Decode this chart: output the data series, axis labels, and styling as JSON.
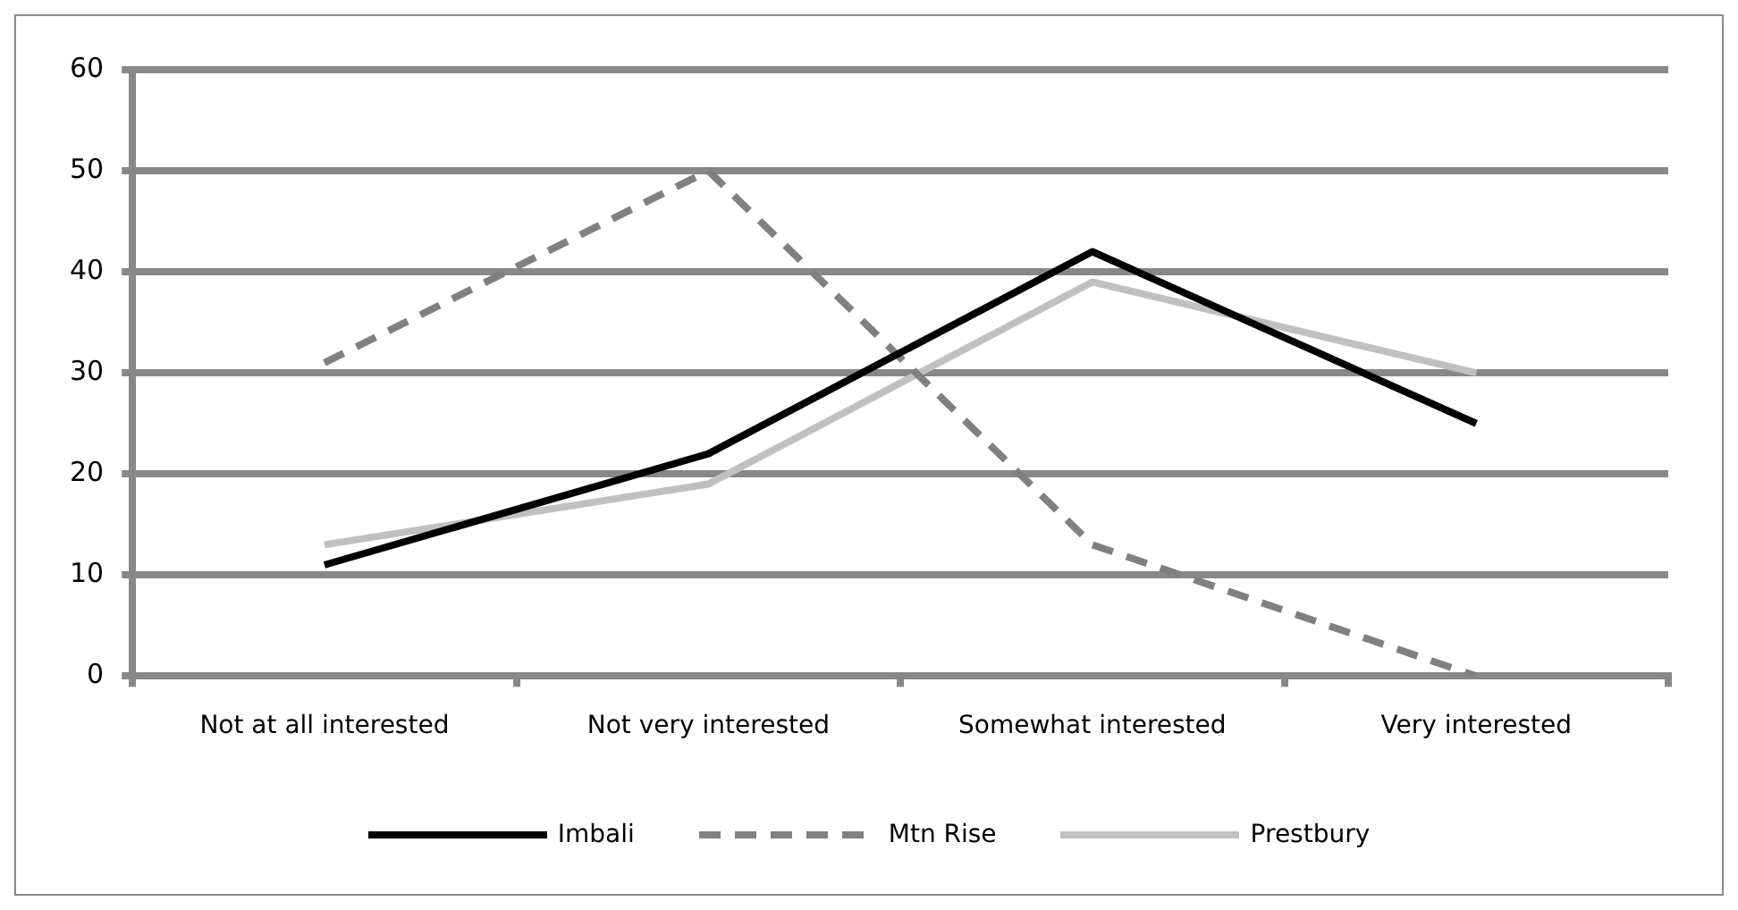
{
  "chart_data": {
    "type": "line",
    "categories": [
      "Not at all interested",
      "Not very interested",
      "Somewhat interested",
      "Very interested"
    ],
    "series": [
      {
        "name": "Imbali",
        "color": "#000000",
        "values": [
          11,
          22,
          42,
          25
        ],
        "line_style": "solid"
      },
      {
        "name": "Mtn Rise",
        "color": "#808080",
        "values": [
          31,
          50,
          13,
          0
        ],
        "line_style": "dashed"
      },
      {
        "name": "Prestbury",
        "color": "#c0c0c0",
        "values": [
          13,
          19,
          39,
          30
        ],
        "line_style": "solid"
      }
    ],
    "ylim": [
      0,
      60
    ],
    "yticks": [
      0,
      10,
      20,
      30,
      40,
      50,
      60
    ],
    "grid": "y",
    "legend": "bottom",
    "marker": "none"
  }
}
